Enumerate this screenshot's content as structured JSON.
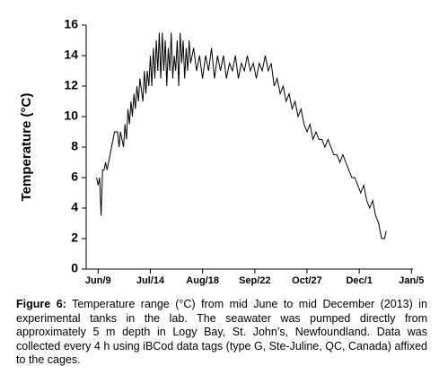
{
  "chart_data": {
    "type": "line",
    "ylabel": "Temperature (°C)",
    "x": [
      159,
      160,
      161,
      162,
      163,
      164,
      165,
      166,
      167,
      168,
      170,
      171,
      173,
      174,
      175,
      177,
      178,
      179,
      180,
      181,
      182,
      183,
      184,
      185,
      186,
      187,
      188,
      190,
      191,
      192,
      193,
      194,
      195,
      196,
      197,
      198,
      199,
      200,
      201,
      202,
      203,
      204,
      205,
      206,
      207,
      208,
      209,
      210,
      211,
      212,
      213,
      214,
      215,
      216,
      217,
      218,
      219,
      220,
      221,
      222,
      224,
      226,
      228,
      230,
      232,
      234,
      236,
      238,
      240,
      242,
      244,
      246,
      248,
      250,
      252,
      254,
      256,
      258,
      260,
      262,
      264,
      266,
      268,
      270,
      272,
      274,
      276,
      278,
      280,
      282,
      284,
      286,
      288,
      290,
      292,
      294,
      296,
      298,
      300,
      302,
      304,
      306,
      308,
      310,
      312,
      314,
      316,
      318,
      320,
      322,
      324,
      326,
      328,
      330,
      332,
      334,
      336,
      338,
      340,
      342,
      344,
      346,
      348,
      349,
      350,
      352,
      353
    ],
    "series": [
      {
        "color": "#000000",
        "values": [
          6,
          5.5,
          6,
          3.5,
          6.5,
          6.5,
          7,
          6.5,
          7,
          7.5,
          8.5,
          9,
          9,
          8,
          9,
          8,
          9.5,
          8.5,
          10.5,
          9.5,
          11,
          10,
          11.5,
          10.5,
          12,
          11,
          12.5,
          11,
          13,
          11.5,
          13,
          12,
          14,
          12,
          14.5,
          12.5,
          15,
          13,
          15.5,
          12.5,
          15.5,
          13,
          15,
          12,
          14.5,
          13,
          15.5,
          12.5,
          14,
          13,
          15,
          12,
          15.5,
          13.5,
          15,
          12.5,
          14.5,
          13,
          15,
          13.5,
          14.5,
          13,
          14,
          12.5,
          14,
          13,
          14.5,
          12.5,
          14,
          13,
          14,
          12.5,
          13.5,
          13,
          14,
          12.5,
          13.5,
          13,
          14,
          13,
          13.5,
          12.5,
          13.5,
          13,
          14,
          13,
          13.5,
          12,
          12.5,
          11.5,
          12,
          11,
          11.5,
          10.5,
          11,
          10,
          10.5,
          9.5,
          9,
          9.5,
          8.5,
          9,
          8.5,
          8.5,
          8,
          8.5,
          8,
          7.5,
          7.5,
          7,
          7.5,
          7,
          6.5,
          6,
          6,
          5.5,
          5,
          5.5,
          4.5,
          4,
          4.5,
          3.5,
          3,
          2.5,
          2,
          2,
          2.5
        ]
      }
    ],
    "xlim": [
      152,
      371
    ],
    "xticks": [
      {
        "value": 160,
        "label": "Jun/9"
      },
      {
        "value": 195,
        "label": "Jul/14"
      },
      {
        "value": 230,
        "label": "Aug/18"
      },
      {
        "value": 265,
        "label": "Sep/22"
      },
      {
        "value": 300,
        "label": "Oct/27"
      },
      {
        "value": 335,
        "label": "Dec/1"
      },
      {
        "value": 370,
        "label": "Jan/5"
      }
    ],
    "ylim": [
      0,
      16
    ],
    "yticks": [
      0,
      2,
      4,
      6,
      8,
      10,
      12,
      14,
      16
    ]
  },
  "caption": {
    "label": "Figure 6:",
    "text": " Temperature range (°C) from mid June to mid December (2013) in experimental tanks in the lab. The seawater was pumped directly from approximately 5 m depth in Logy Bay, St. John’s, Newfoundland. Data was collected every 4 h using iBCod data tags (type G, Ste-Juline, QC, Canada) affixed to the cages."
  }
}
